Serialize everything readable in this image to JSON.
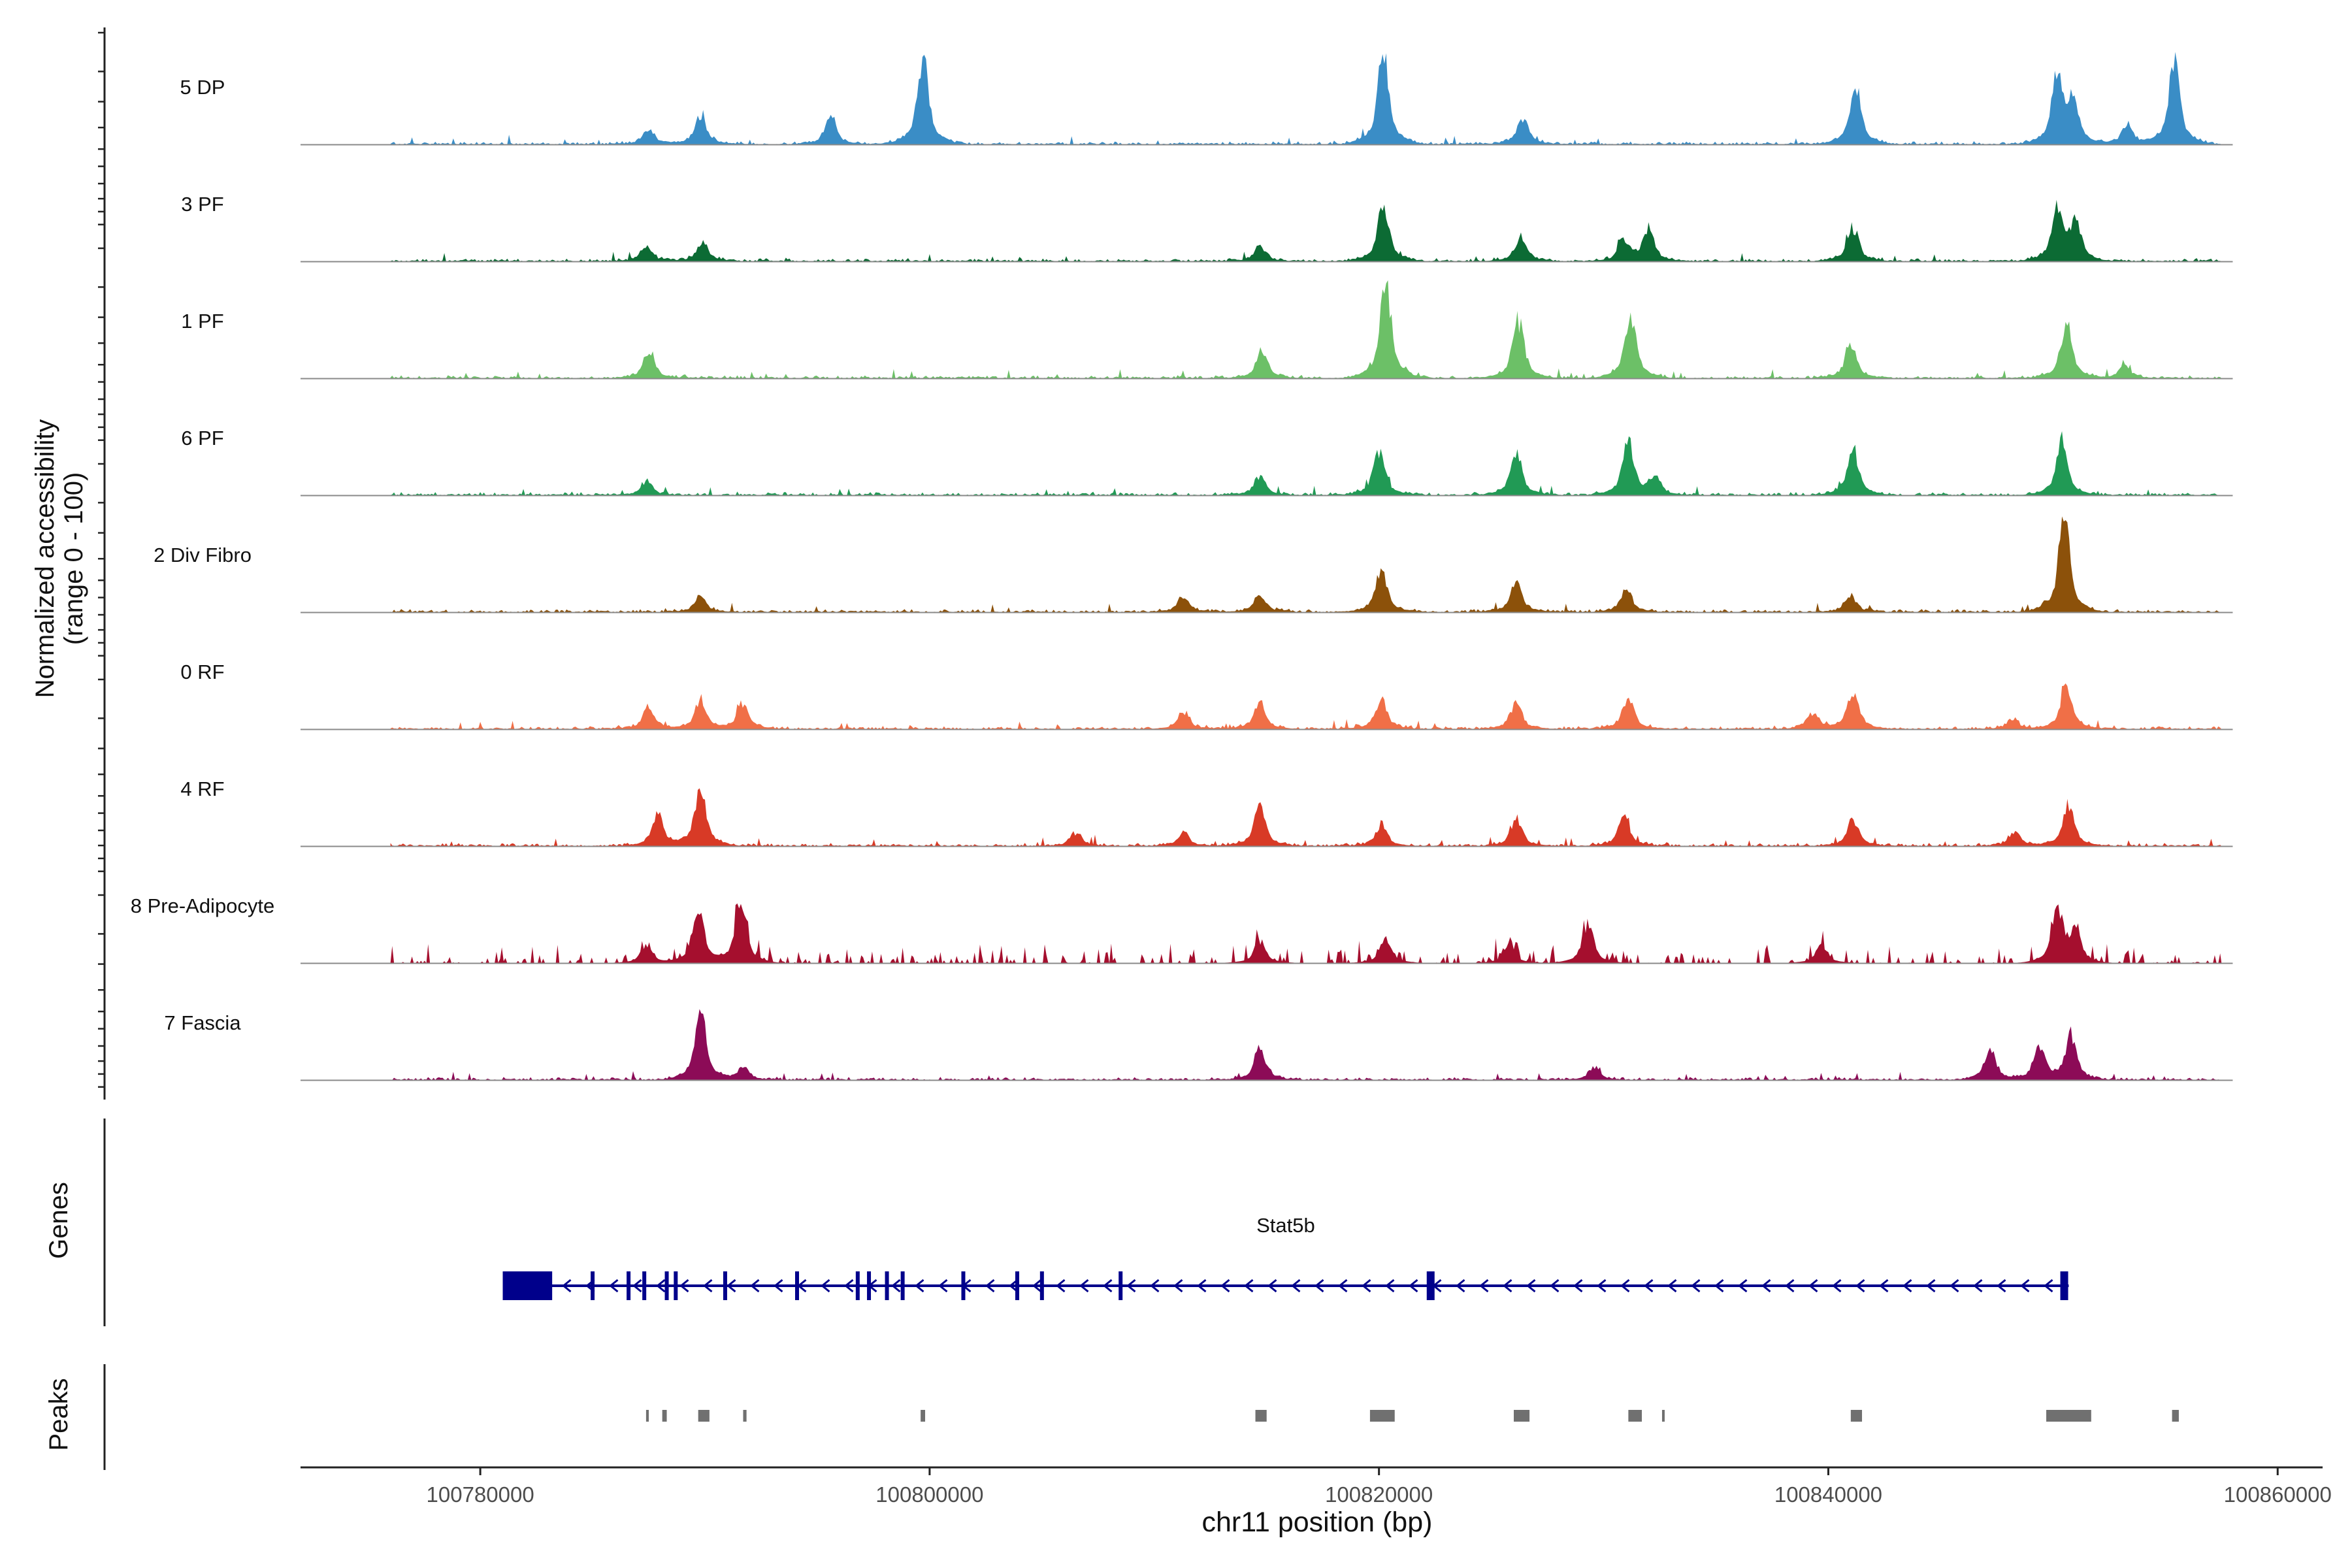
{
  "chart_data": {
    "type": "area",
    "title": "",
    "ylabel_line1": "Normalized accessibility",
    "ylabel_line2": "(range 0 - 100)",
    "xlabel": "chr11 position (bp)",
    "xlim": [
      100772000,
      100862000
    ],
    "data_extent": [
      100776000,
      100857500
    ],
    "ylim": [
      0,
      100
    ],
    "x_ticks": [
      100780000,
      100800000,
      100820000,
      100840000,
      100860000
    ],
    "x_tick_labels": [
      "100780000",
      "100800000",
      "100820000",
      "100840000",
      "100860000"
    ],
    "tracks": [
      {
        "name": "5 DP",
        "color": "#3a8dc6",
        "peaks": [
          [
            100787500,
            15
          ],
          [
            100789800,
            28
          ],
          [
            100795600,
            25
          ],
          [
            100799700,
            85
          ],
          [
            100820200,
            88
          ],
          [
            100826400,
            26
          ],
          [
            100841200,
            58
          ],
          [
            100850200,
            65
          ],
          [
            100850900,
            40
          ],
          [
            100853300,
            18
          ],
          [
            100855400,
            80
          ]
        ]
      },
      {
        "name": "3 PF",
        "color": "#0c6b34",
        "peaks": [
          [
            100787400,
            14
          ],
          [
            100789900,
            18
          ],
          [
            100814700,
            14
          ],
          [
            100820200,
            55
          ],
          [
            100826300,
            22
          ],
          [
            100830900,
            20
          ],
          [
            100832000,
            28
          ],
          [
            100841100,
            32
          ],
          [
            100850200,
            50
          ],
          [
            100851000,
            36
          ]
        ]
      },
      {
        "name": "1 PF",
        "color": "#6cc067",
        "peaks": [
          [
            100787500,
            25
          ],
          [
            100814800,
            26
          ],
          [
            100820300,
            88
          ],
          [
            100826200,
            55
          ],
          [
            100831200,
            62
          ],
          [
            100841000,
            32
          ],
          [
            100850600,
            52
          ],
          [
            100853200,
            12
          ]
        ]
      },
      {
        "name": "6 PF",
        "color": "#219a55",
        "peaks": [
          [
            100787400,
            13
          ],
          [
            100814700,
            18
          ],
          [
            100820000,
            42
          ],
          [
            100826100,
            42
          ],
          [
            100831100,
            50
          ],
          [
            100832300,
            18
          ],
          [
            100841100,
            45
          ],
          [
            100850400,
            52
          ]
        ]
      },
      {
        "name": "2 Div Fibro",
        "color": "#8c510a",
        "peaks": [
          [
            100789800,
            15
          ],
          [
            100811300,
            15
          ],
          [
            100814700,
            18
          ],
          [
            100820100,
            40
          ],
          [
            100826100,
            28
          ],
          [
            100831000,
            22
          ],
          [
            100841000,
            16
          ],
          [
            100850500,
            90
          ]
        ]
      },
      {
        "name": "0 RF",
        "color": "#f06f47",
        "peaks": [
          [
            100787500,
            22
          ],
          [
            100789800,
            28
          ],
          [
            100791700,
            25
          ],
          [
            100811300,
            17
          ],
          [
            100814700,
            25
          ],
          [
            100820100,
            30
          ],
          [
            100826100,
            25
          ],
          [
            100831100,
            30
          ],
          [
            100839300,
            15
          ],
          [
            100841100,
            38
          ],
          [
            100848200,
            10
          ],
          [
            100850600,
            42
          ]
        ]
      },
      {
        "name": "4 RF",
        "color": "#d83a26",
        "peaks": [
          [
            100787900,
            30
          ],
          [
            100789800,
            55
          ],
          [
            100806500,
            12
          ],
          [
            100811300,
            12
          ],
          [
            100814700,
            38
          ],
          [
            100820100,
            20
          ],
          [
            100826100,
            25
          ],
          [
            100830900,
            28
          ],
          [
            100841100,
            26
          ],
          [
            100848300,
            14
          ],
          [
            100850700,
            40
          ]
        ]
      },
      {
        "name": "8 Pre-Adipocyte",
        "color": "#a50f2e",
        "noisy": true,
        "peaks": [
          [
            100789700,
            55
          ],
          [
            100791600,
            58
          ],
          [
            100787400,
            18
          ],
          [
            100814700,
            22
          ],
          [
            100820300,
            24
          ],
          [
            100825800,
            18
          ],
          [
            100829300,
            38
          ],
          [
            100839700,
            18
          ],
          [
            100850200,
            52
          ],
          [
            100851000,
            30
          ]
        ]
      },
      {
        "name": "7 Fascia",
        "color": "#8c0b57",
        "peaks": [
          [
            100789800,
            65
          ],
          [
            100791700,
            12
          ],
          [
            100814700,
            30
          ],
          [
            100829600,
            12
          ],
          [
            100847200,
            28
          ],
          [
            100849400,
            32
          ],
          [
            100850800,
            42
          ]
        ]
      }
    ],
    "genes": [
      {
        "name": "Stat5b",
        "start": 100781000,
        "end": 100850700,
        "strand": "-",
        "color": "#00008b",
        "exons": [
          100781000,
          100783200,
          100785000,
          100786600,
          100787300,
          100788300,
          100788700,
          100790900,
          100794100,
          100796800,
          100797300,
          100798100,
          100798800,
          100801500,
          100803900,
          100805000,
          100808500,
          100822300,
          100850500
        ]
      }
    ],
    "peak_regions": [
      [
        100787380,
        100787500
      ],
      [
        100788100,
        100788300
      ],
      [
        100789700,
        100790200
      ],
      [
        100791700,
        100791850
      ],
      [
        100799600,
        100799800
      ],
      [
        100814500,
        100815000
      ],
      [
        100819600,
        100820700
      ],
      [
        100826000,
        100826700
      ],
      [
        100831100,
        100831700
      ],
      [
        100832600,
        100832700
      ],
      [
        100841000,
        100841500
      ],
      [
        100849700,
        100851700
      ],
      [
        100855300,
        100855600
      ]
    ],
    "panel_labels": {
      "genes": "Genes",
      "peaks": "Peaks"
    }
  }
}
